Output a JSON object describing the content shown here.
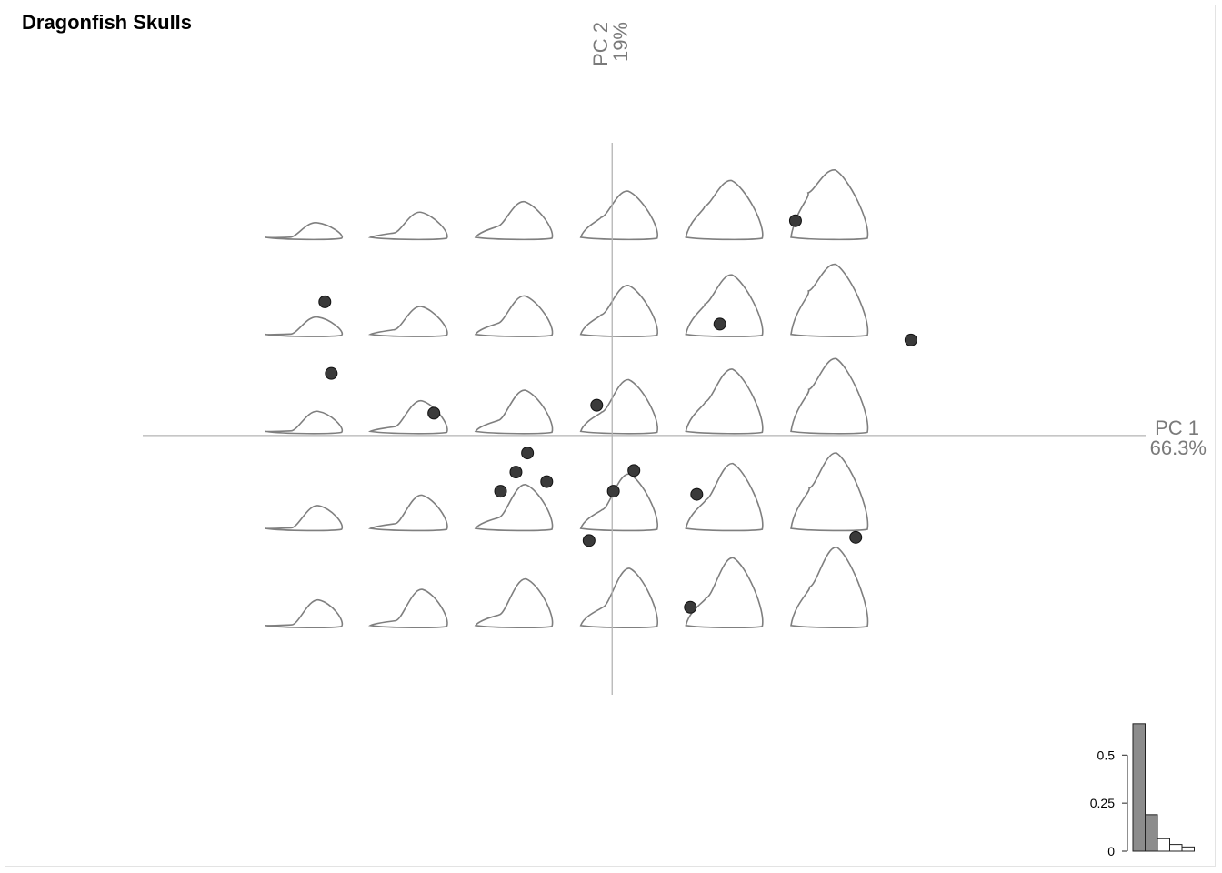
{
  "title": "Dragonfish Skulls",
  "chart_data": {
    "type": "scatter",
    "title": "Dragonfish Skulls",
    "x_axis": {
      "name": "PC 1",
      "variance": "66.3%",
      "range": [
        -3.66,
        4.16
      ]
    },
    "y_axis": {
      "name": "PC 2",
      "variance": "19%",
      "range": [
        -1.63,
        1.84
      ]
    },
    "points": [
      {
        "x": -2.24,
        "y": 0.84
      },
      {
        "x": -2.19,
        "y": 0.39
      },
      {
        "x": -1.39,
        "y": 0.14
      },
      {
        "x": -0.66,
        "y": -0.11
      },
      {
        "x": -0.75,
        "y": -0.23
      },
      {
        "x": -0.51,
        "y": -0.29
      },
      {
        "x": -0.87,
        "y": -0.35
      },
      {
        "x": -0.12,
        "y": 0.19
      },
      {
        "x": 0.01,
        "y": -0.35
      },
      {
        "x": 0.17,
        "y": -0.22
      },
      {
        "x": -0.18,
        "y": -0.66
      },
      {
        "x": 0.84,
        "y": 0.7
      },
      {
        "x": 0.66,
        "y": -0.37
      },
      {
        "x": 0.61,
        "y": -1.08
      },
      {
        "x": 1.43,
        "y": 1.35
      },
      {
        "x": 2.33,
        "y": 0.6
      },
      {
        "x": 1.9,
        "y": -0.64
      }
    ],
    "morphospace": {
      "columns": 6,
      "rows": 5,
      "pc1_values": [
        -2.4,
        -1.58,
        -0.76,
        0.06,
        0.88,
        1.7
      ],
      "pc2_values": [
        1.36,
        0.75,
        0.14,
        -0.47,
        -1.08
      ]
    },
    "eigenvalues": {
      "type": "bar",
      "values": [
        0.663,
        0.19,
        0.065,
        0.035,
        0.022
      ],
      "highlighted": [
        true,
        true,
        false,
        false,
        false
      ],
      "ticks": [
        "0",
        "0.25",
        "0.5"
      ],
      "tick_values": [
        0,
        0.25,
        0.5
      ],
      "colors": {
        "highlighted": "#8c8c8c",
        "other": "#ffffff"
      }
    },
    "colors": {
      "points": "#3a3a3a",
      "shapes": "#7f7f7f",
      "axes": "#b4b4b4"
    }
  }
}
